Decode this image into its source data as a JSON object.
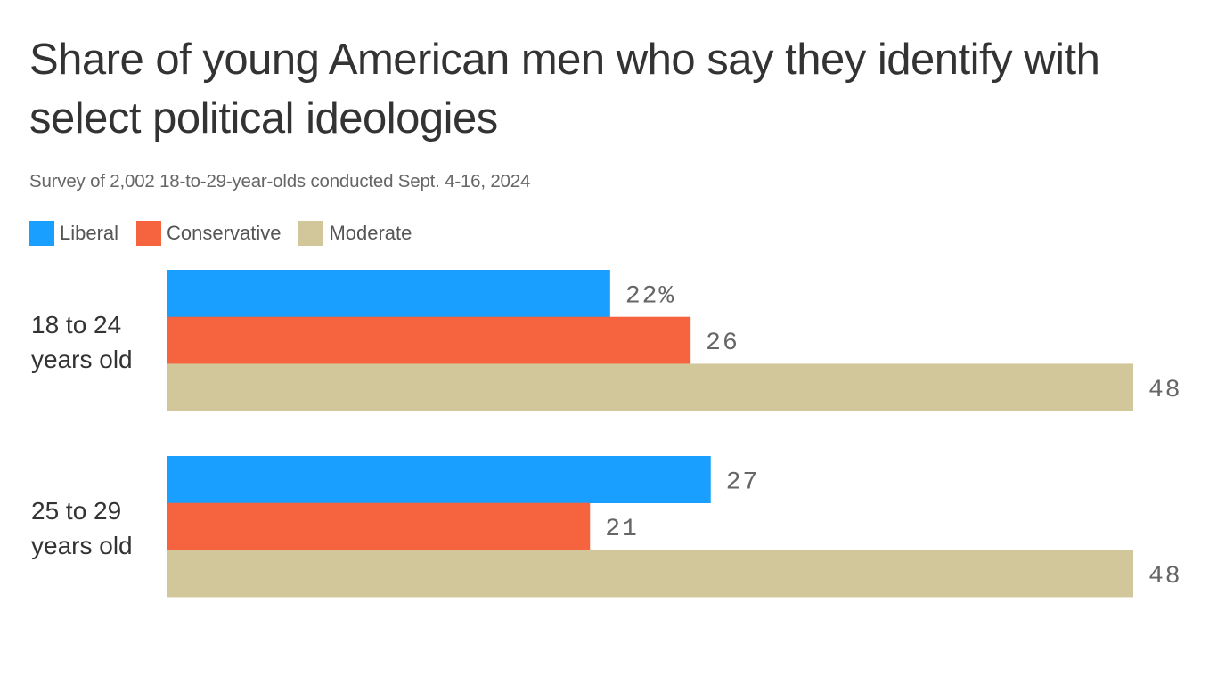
{
  "chart_data": {
    "type": "bar",
    "orientation": "horizontal",
    "title": "Share of young American men who say they identify with select political ideologies",
    "subtitle": "Survey of 2,002 18-to-29-year-olds conducted Sept. 4-16, 2024",
    "categories": [
      "18 to 24 years old",
      "25 to 29 years old"
    ],
    "category_lines": [
      [
        "18 to 24",
        "years old"
      ],
      [
        "25 to 29",
        "years old"
      ]
    ],
    "series": [
      {
        "name": "Liberal",
        "color": "#189fff",
        "values": [
          22,
          27
        ],
        "labels": [
          "22%",
          "27"
        ]
      },
      {
        "name": "Conservative",
        "color": "#f6643f",
        "values": [
          26,
          21
        ],
        "labels": [
          "26",
          "21"
        ]
      },
      {
        "name": "Moderate",
        "color": "#d2c79a",
        "values": [
          48,
          48
        ],
        "labels": [
          "48",
          "48"
        ]
      }
    ],
    "xlim": [
      0,
      48
    ],
    "xlabel": "",
    "ylabel": "",
    "grid": false,
    "legend_position": "top-left",
    "unit": "%"
  }
}
